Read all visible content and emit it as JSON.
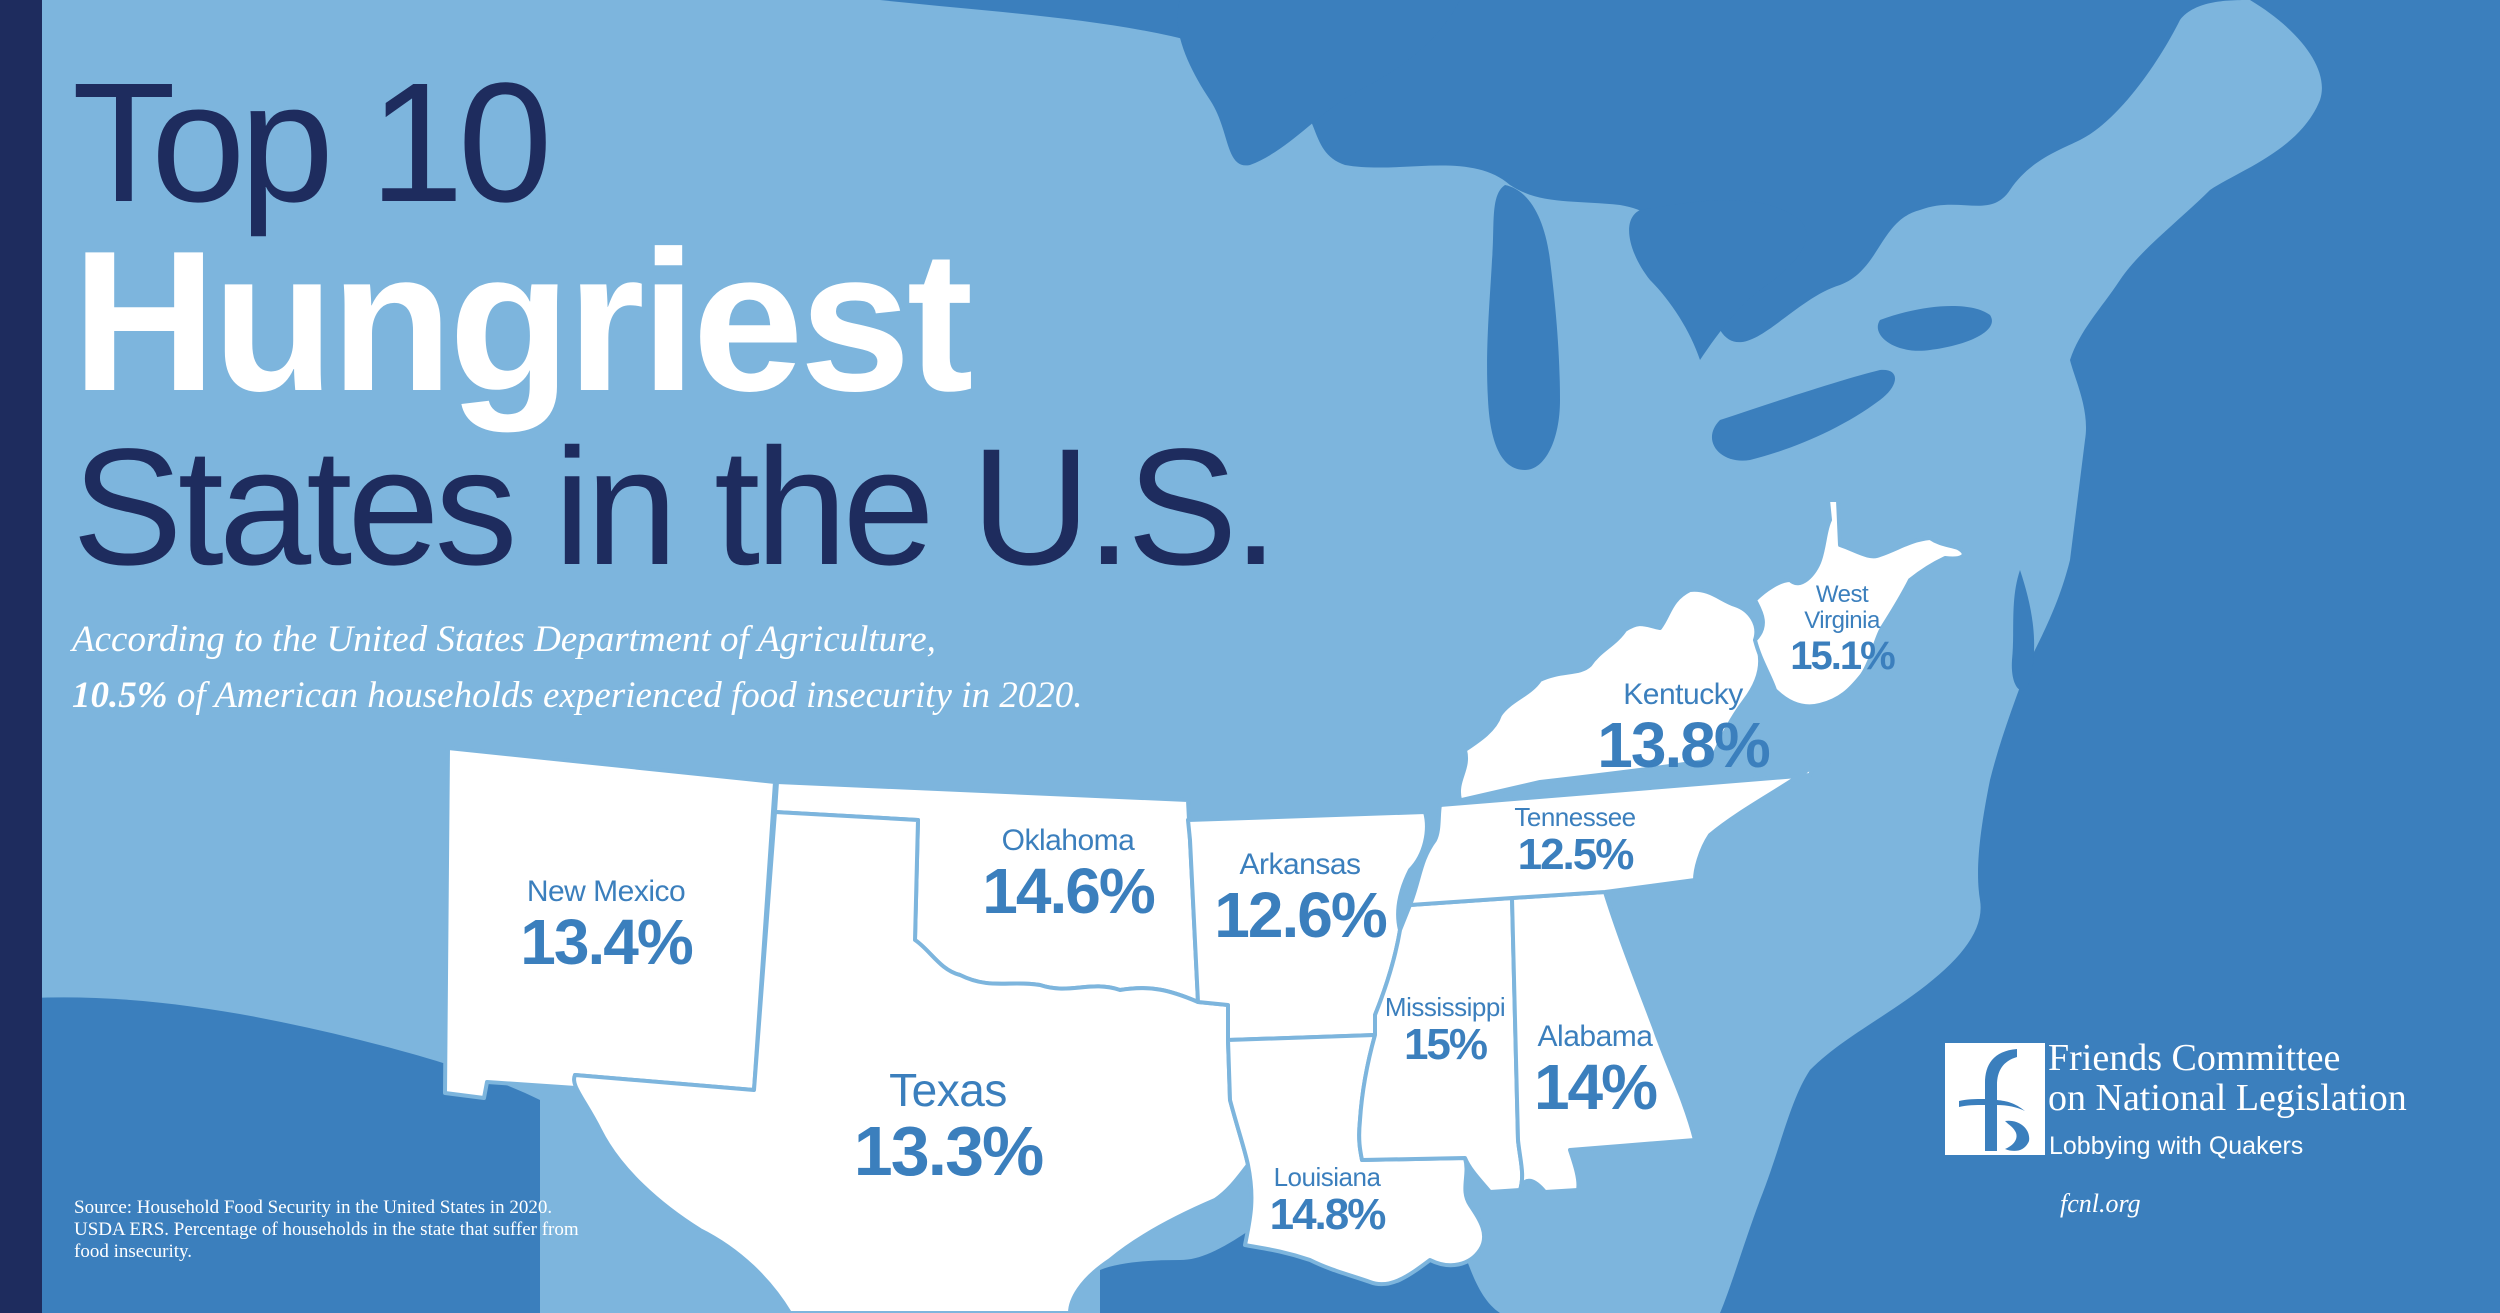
{
  "title": {
    "line1": "Top 10",
    "line2": "Hungriest",
    "line3": "States in the U.S."
  },
  "intro": {
    "line1": "According to the United States Department of Agriculture,",
    "highlight": "10.5%",
    "line2_rest": " of American households experienced food insecurity in 2020."
  },
  "states": {
    "west_virginia": {
      "name_line1": "West",
      "name_line2": "Virginia",
      "rate": "15.1%",
      "value": 15.1
    },
    "kentucky": {
      "name": "Kentucky",
      "rate": "13.8%",
      "value": 13.8
    },
    "tennessee": {
      "name": "Tennessee",
      "rate": "12.5%",
      "value": 12.5
    },
    "oklahoma": {
      "name": "Oklahoma",
      "rate": "14.6%",
      "value": 14.6
    },
    "arkansas": {
      "name": "Arkansas",
      "rate": "12.6%",
      "value": 12.6
    },
    "new_mexico": {
      "name": "New Mexico",
      "rate": "13.4%",
      "value": 13.4
    },
    "mississippi": {
      "name": "Mississippi",
      "rate": "15%",
      "value": 15
    },
    "alabama": {
      "name": "Alabama",
      "rate": "14%",
      "value": 14
    },
    "texas": {
      "name": "Texas",
      "rate": "13.3%",
      "value": 13.3
    },
    "louisiana": {
      "name": "Louisiana",
      "rate": "14.8%",
      "value": 14.8
    }
  },
  "source": "Source: Household Food Security in the United States in 2020. USDA ERS. Percentage of households in the state that suffer from food insecurity.",
  "organization": {
    "name_line1": "Friends Committee",
    "name_line2": "on National Legislation",
    "tagline": "Lobbying with Quakers",
    "url": "fcnl.org"
  },
  "colors": {
    "water": "#3b7fbd",
    "land": "#7db5dd",
    "highlight_state": "#ffffff",
    "label_blue": "#3b7fbd",
    "title_navy": "#1e2c5e"
  }
}
